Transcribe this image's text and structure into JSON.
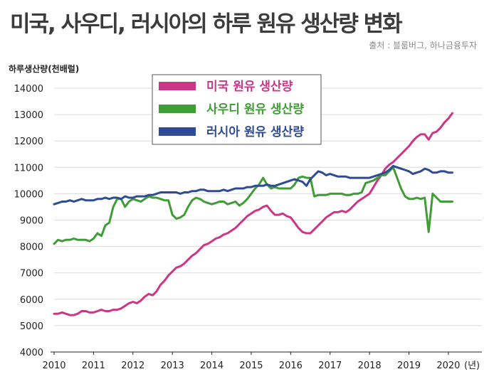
{
  "title": "미국, 사우디, 러시아의 하루 원유 생산량 변화",
  "source": "출처 : 블룸버그, 하나금융투자",
  "chart_data": {
    "type": "line",
    "ylabel": "하루생산량(천배럴)",
    "xunit": "(년)",
    "ylim": [
      4000,
      14000
    ],
    "yticks": [
      "4000",
      "5000",
      "6000",
      "7000",
      "8000",
      "9000",
      "10000",
      "11000",
      "12000",
      "13000",
      "14000"
    ],
    "xlim": [
      2010,
      2020.85
    ],
    "xticks": [
      "2010",
      "2011",
      "2012",
      "2013",
      "2014",
      "2015",
      "2016",
      "2017",
      "2018",
      "2019",
      "2020"
    ],
    "grid": true,
    "legend_position": "top-center",
    "series": [
      {
        "name": "미국 원유 생산량",
        "color": "#cc3686",
        "x": [
          2010.0,
          2010.1,
          2010.2,
          2010.3,
          2010.4,
          2010.5,
          2010.6,
          2010.7,
          2010.8,
          2010.9,
          2011.0,
          2011.1,
          2011.2,
          2011.3,
          2011.4,
          2011.5,
          2011.6,
          2011.7,
          2011.8,
          2011.9,
          2012.0,
          2012.1,
          2012.2,
          2012.3,
          2012.4,
          2012.5,
          2012.6,
          2012.7,
          2012.8,
          2012.9,
          2013.0,
          2013.1,
          2013.2,
          2013.3,
          2013.4,
          2013.5,
          2013.6,
          2013.7,
          2013.8,
          2013.9,
          2014.0,
          2014.1,
          2014.2,
          2014.3,
          2014.4,
          2014.5,
          2014.6,
          2014.7,
          2014.8,
          2014.9,
          2015.0,
          2015.1,
          2015.2,
          2015.3,
          2015.4,
          2015.5,
          2015.6,
          2015.7,
          2015.8,
          2015.9,
          2016.0,
          2016.1,
          2016.2,
          2016.3,
          2016.4,
          2016.5,
          2016.6,
          2016.7,
          2016.8,
          2016.9,
          2017.0,
          2017.1,
          2017.2,
          2017.3,
          2017.4,
          2017.5,
          2017.6,
          2017.7,
          2017.8,
          2017.9,
          2018.0,
          2018.1,
          2018.2,
          2018.3,
          2018.4,
          2018.5,
          2018.6,
          2018.7,
          2018.8,
          2018.9,
          2019.0,
          2019.1,
          2019.2,
          2019.3,
          2019.4,
          2019.5,
          2019.6,
          2019.7,
          2019.8,
          2019.9,
          2020.0,
          2020.1
        ],
        "values": [
          5450,
          5450,
          5500,
          5450,
          5400,
          5400,
          5450,
          5550,
          5550,
          5500,
          5500,
          5550,
          5600,
          5550,
          5550,
          5600,
          5600,
          5650,
          5750,
          5850,
          5900,
          5850,
          5950,
          6100,
          6200,
          6150,
          6300,
          6550,
          6700,
          6900,
          7050,
          7200,
          7250,
          7350,
          7500,
          7650,
          7750,
          7900,
          8050,
          8100,
          8200,
          8300,
          8350,
          8450,
          8500,
          8600,
          8700,
          8850,
          9000,
          9150,
          9250,
          9350,
          9400,
          9500,
          9550,
          9350,
          9200,
          9200,
          9250,
          9150,
          9100,
          8900,
          8700,
          8550,
          8500,
          8500,
          8650,
          8800,
          8950,
          9100,
          9200,
          9300,
          9300,
          9350,
          9300,
          9400,
          9550,
          9700,
          9800,
          9900,
          10000,
          10250,
          10500,
          10700,
          10950,
          11100,
          11200,
          11350,
          11500,
          11650,
          11800,
          12000,
          12150,
          12250,
          12250,
          12050,
          12300,
          12350,
          12500,
          12700,
          12850,
          13050
        ]
      },
      {
        "name": "사우디 원유 생산량",
        "color": "#3f9d35",
        "x": [
          2010.0,
          2010.1,
          2010.2,
          2010.3,
          2010.4,
          2010.5,
          2010.6,
          2010.7,
          2010.8,
          2010.9,
          2011.0,
          2011.1,
          2011.2,
          2011.3,
          2011.4,
          2011.5,
          2011.6,
          2011.7,
          2011.8,
          2011.9,
          2012.0,
          2012.1,
          2012.2,
          2012.3,
          2012.4,
          2012.5,
          2012.6,
          2012.7,
          2012.8,
          2012.9,
          2013.0,
          2013.1,
          2013.2,
          2013.3,
          2013.4,
          2013.5,
          2013.6,
          2013.7,
          2013.8,
          2013.9,
          2014.0,
          2014.1,
          2014.2,
          2014.3,
          2014.4,
          2014.5,
          2014.6,
          2014.7,
          2014.8,
          2014.9,
          2015.0,
          2015.1,
          2015.2,
          2015.3,
          2015.4,
          2015.5,
          2015.6,
          2015.7,
          2015.8,
          2015.9,
          2016.0,
          2016.1,
          2016.2,
          2016.3,
          2016.4,
          2016.5,
          2016.6,
          2016.7,
          2016.8,
          2016.9,
          2017.0,
          2017.1,
          2017.2,
          2017.3,
          2017.4,
          2017.5,
          2017.6,
          2017.7,
          2017.8,
          2017.9,
          2018.0,
          2018.1,
          2018.2,
          2018.3,
          2018.4,
          2018.5,
          2018.6,
          2018.7,
          2018.8,
          2018.9,
          2019.0,
          2019.1,
          2019.2,
          2019.3,
          2019.4,
          2019.5,
          2019.6,
          2019.7,
          2019.8,
          2019.9,
          2020.0,
          2020.1
        ],
        "values": [
          8100,
          8250,
          8200,
          8250,
          8250,
          8300,
          8250,
          8250,
          8250,
          8200,
          8300,
          8500,
          8400,
          8800,
          8900,
          9500,
          9800,
          9800,
          9500,
          9700,
          9800,
          9750,
          9700,
          9800,
          9900,
          9850,
          9850,
          9800,
          9750,
          9750,
          9200,
          9050,
          9100,
          9200,
          9500,
          9750,
          9850,
          9800,
          9700,
          9650,
          9600,
          9650,
          9700,
          9700,
          9600,
          9650,
          9700,
          9550,
          9650,
          9800,
          10000,
          10200,
          10350,
          10600,
          10350,
          10200,
          10250,
          10200,
          10200,
          10200,
          10200,
          10350,
          10600,
          10650,
          10600,
          10600,
          9900,
          9950,
          9950,
          9950,
          10000,
          10000,
          10000,
          10000,
          9950,
          9950,
          10000,
          10000,
          10050,
          10400,
          10450,
          10500,
          10600,
          10700,
          10700,
          10850,
          11000,
          10600,
          10200,
          9900,
          9800,
          9800,
          9850,
          9800,
          9850,
          8550,
          10000,
          9850,
          9700,
          9700,
          9700,
          9700
        ]
      },
      {
        "name": "러시아 원유 생산량",
        "color": "#2e4b93",
        "x": [
          2010.0,
          2010.1,
          2010.2,
          2010.3,
          2010.4,
          2010.5,
          2010.6,
          2010.7,
          2010.8,
          2010.9,
          2011.0,
          2011.1,
          2011.2,
          2011.3,
          2011.4,
          2011.5,
          2011.6,
          2011.7,
          2011.8,
          2011.9,
          2012.0,
          2012.1,
          2012.2,
          2012.3,
          2012.4,
          2012.5,
          2012.6,
          2012.7,
          2012.8,
          2012.9,
          2013.0,
          2013.1,
          2013.2,
          2013.3,
          2013.4,
          2013.5,
          2013.6,
          2013.7,
          2013.8,
          2013.9,
          2014.0,
          2014.1,
          2014.2,
          2014.3,
          2014.4,
          2014.5,
          2014.6,
          2014.7,
          2014.8,
          2014.9,
          2015.0,
          2015.1,
          2015.2,
          2015.3,
          2015.4,
          2015.5,
          2015.6,
          2015.7,
          2015.8,
          2015.9,
          2016.0,
          2016.1,
          2016.2,
          2016.3,
          2016.4,
          2016.5,
          2016.6,
          2016.7,
          2016.8,
          2016.9,
          2017.0,
          2017.1,
          2017.2,
          2017.3,
          2017.4,
          2017.5,
          2017.6,
          2017.7,
          2017.8,
          2017.9,
          2018.0,
          2018.1,
          2018.2,
          2018.3,
          2018.4,
          2018.5,
          2018.6,
          2018.7,
          2018.8,
          2018.9,
          2019.0,
          2019.1,
          2019.2,
          2019.3,
          2019.4,
          2019.5,
          2019.6,
          2019.7,
          2019.8,
          2019.9,
          2020.0,
          2020.1
        ],
        "values": [
          9600,
          9650,
          9700,
          9700,
          9750,
          9700,
          9750,
          9800,
          9750,
          9750,
          9750,
          9800,
          9800,
          9850,
          9800,
          9850,
          9850,
          9800,
          9900,
          9850,
          9850,
          9900,
          9900,
          9900,
          9950,
          9950,
          10000,
          10050,
          10050,
          10050,
          10050,
          10050,
          10000,
          10050,
          10050,
          10100,
          10100,
          10150,
          10150,
          10100,
          10100,
          10100,
          10100,
          10150,
          10100,
          10150,
          10200,
          10200,
          10200,
          10250,
          10250,
          10300,
          10300,
          10300,
          10350,
          10300,
          10300,
          10350,
          10400,
          10450,
          10500,
          10550,
          10500,
          10450,
          10300,
          10550,
          10700,
          10850,
          10800,
          10700,
          10750,
          10700,
          10650,
          10650,
          10650,
          10600,
          10600,
          10600,
          10600,
          10600,
          10600,
          10650,
          10700,
          10750,
          10800,
          10900,
          11050,
          11000,
          10950,
          10900,
          10850,
          10750,
          10800,
          10850,
          10950,
          10900,
          10800,
          10800,
          10850,
          10850,
          10800,
          10800
        ]
      }
    ]
  }
}
